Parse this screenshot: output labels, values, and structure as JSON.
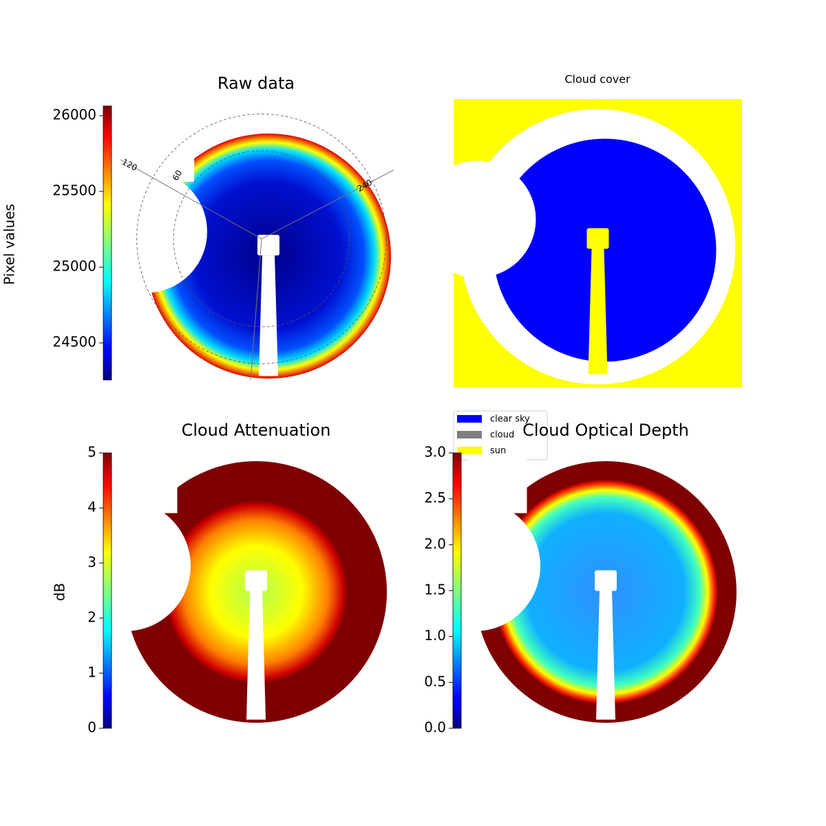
{
  "chart_data": [
    {
      "type": "image",
      "title": "Raw data",
      "colorbar_label": "Pixel values",
      "colormap": "jet",
      "ylim": [
        24255,
        26064
      ],
      "yticks": [
        24500,
        25000,
        25500,
        26000
      ],
      "annotations": [
        "120",
        "60",
        "240"
      ]
    },
    {
      "type": "image",
      "title": "Cloud cover",
      "legend": [
        {
          "name": "clear sky",
          "color": "#0000ff"
        },
        {
          "name": "cloud",
          "color": "#808080"
        },
        {
          "name": "sun",
          "color": "#ffff00"
        }
      ]
    },
    {
      "type": "image",
      "title": "Cloud Attenuation",
      "colorbar_label": "dB",
      "colormap": "jet",
      "ylim": [
        0,
        5
      ],
      "yticks": [
        0,
        1,
        2,
        3,
        4,
        5
      ]
    },
    {
      "type": "image",
      "title": "Cloud Optical Depth",
      "colormap": "jet",
      "ylim": [
        0,
        3
      ],
      "yticks": [
        {
          "value": 0,
          "label": "0.0"
        },
        {
          "value": 0.5,
          "label": "0.5"
        },
        {
          "value": 1,
          "label": "1.0"
        },
        {
          "value": 1.5,
          "label": "1.5"
        },
        {
          "value": 2,
          "label": "2.0"
        },
        {
          "value": 2.5,
          "label": "2.5"
        },
        {
          "value": 3,
          "label": "3.0"
        }
      ]
    }
  ]
}
